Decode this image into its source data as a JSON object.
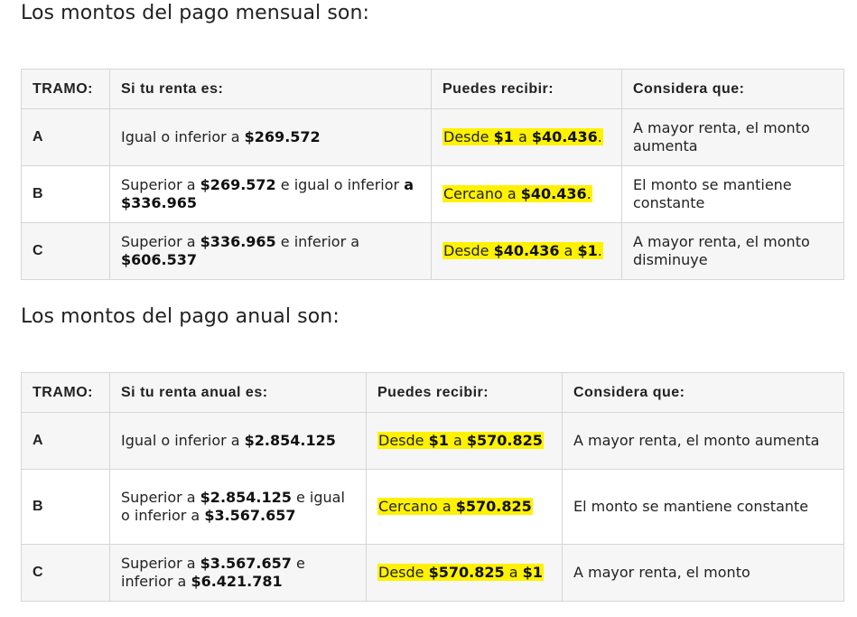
{
  "mensual": {
    "heading": "Los montos del pago mensual son:",
    "headers": [
      "TRAMO:",
      "Si tu renta es:",
      "Puedes recibir:",
      "Considera que:"
    ],
    "rows": [
      {
        "tramo": "A",
        "renta": {
          "p1": "Igual o inferior a ",
          "b1": "$269.572",
          "p2": "",
          "b2": ""
        },
        "recibir": {
          "p1": "Desde ",
          "b1": "$1",
          "p2": " a ",
          "b2": "$40.436",
          "p3": "."
        },
        "considera": "A mayor renta, el monto aumenta"
      },
      {
        "tramo": "B",
        "renta": {
          "p1": "Superior a ",
          "b1": "$269.572",
          "p2": " e igual o inferior ",
          "b2": "a $336.965"
        },
        "recibir": {
          "p1": "Cercano a ",
          "b1": "$40.436",
          "p2": "",
          "b2": "",
          "p3": "."
        },
        "considera": "El monto se mantiene constante"
      },
      {
        "tramo": "C",
        "renta": {
          "p1": "Superior a ",
          "b1": "$336.965",
          "p2": " e inferior a ",
          "b2": "$606.537"
        },
        "recibir": {
          "p1": "Desde ",
          "b1": "$40.436",
          "p2": " a ",
          "b2": "$1",
          "p3": "."
        },
        "considera": "A mayor renta, el monto disminuye"
      }
    ]
  },
  "anual": {
    "heading": "Los montos del pago anual son:",
    "headers": [
      "TRAMO:",
      "Si tu renta anual es:",
      "Puedes recibir:",
      "Considera que:"
    ],
    "rows": [
      {
        "tramo": "A",
        "renta": {
          "p1": "Igual o inferior a ",
          "b1": "$2.854.125",
          "p2": "",
          "b2": "",
          "p3": ""
        },
        "recibir": {
          "p1": "Desde ",
          "b1": "$1",
          "p2": " a ",
          "b2": "$570.825"
        },
        "considera": "A mayor renta, el monto aumenta"
      },
      {
        "tramo": "B",
        "renta": {
          "p1": "Superior a ",
          "b1": "$2.854.125",
          "p2": " e igual o inferior a ",
          "b2": "$3.567.657",
          "p3": ""
        },
        "recibir": {
          "p1": "Cercano a ",
          "b1": "$570.825",
          "p2": "",
          "b2": ""
        },
        "considera": "El monto se mantiene constante"
      },
      {
        "tramo": "C",
        "renta": {
          "p1": "Superior a ",
          "b1": "$3.567.657",
          "p2": " e inferior a ",
          "b2": "$6.421.781",
          "p3": ""
        },
        "recibir": {
          "p1": "Desde ",
          "b1": "$570.825",
          "p2": " a ",
          "b2": "$1"
        },
        "considera": "A mayor renta, el monto"
      }
    ]
  },
  "colors": {
    "highlight": "#fff200",
    "header_bg": "#f6f6f6",
    "border": "#d6d6d6"
  }
}
